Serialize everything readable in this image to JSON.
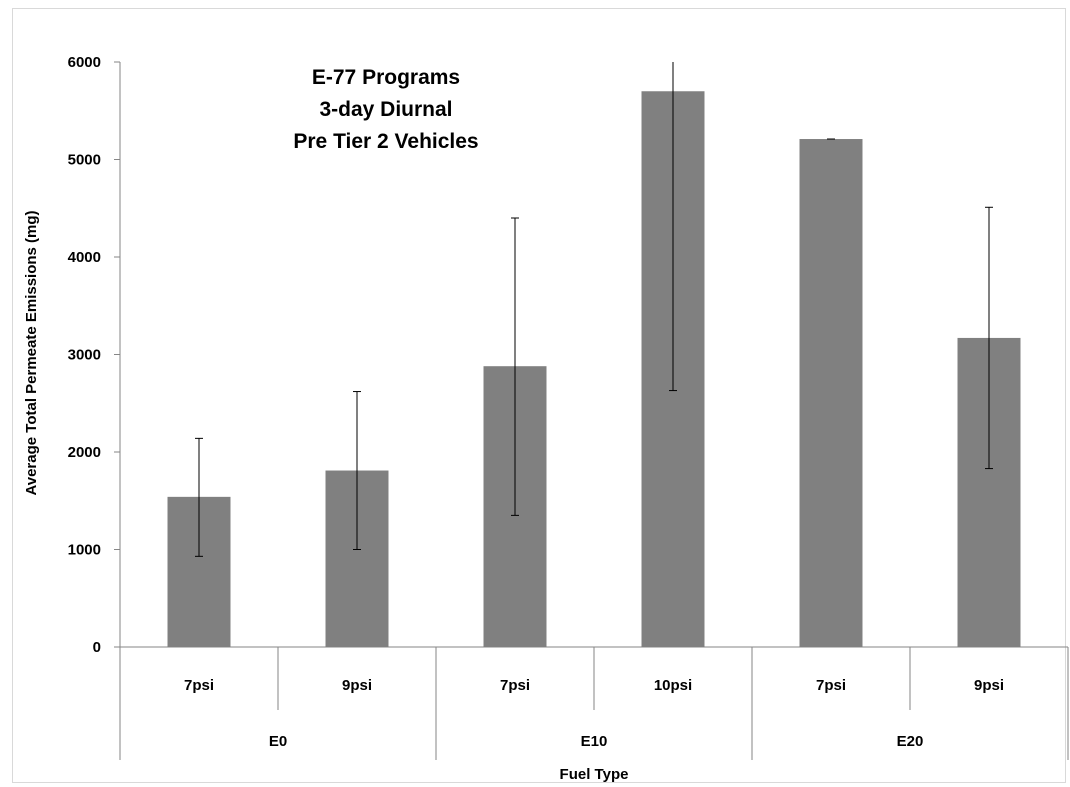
{
  "chart_data": {
    "type": "bar",
    "title_lines": [
      "E-77 Programs",
      "3-day Diurnal",
      "Pre Tier 2 Vehicles"
    ],
    "xlabel": "Fuel Type",
    "ylabel": "Average Total Permeate Emissions (mg)",
    "ylim": [
      0,
      6000
    ],
    "yticks": [
      0,
      1000,
      2000,
      3000,
      4000,
      5000,
      6000
    ],
    "grid": false,
    "legend": "none",
    "bar_color": "#808080",
    "groups": [
      {
        "label": "E0",
        "categories": [
          "7psi",
          "9psi"
        ]
      },
      {
        "label": "E10",
        "categories": [
          "7psi",
          "10psi"
        ]
      },
      {
        "label": "E20",
        "categories": [
          "7psi",
          "9psi"
        ]
      }
    ],
    "categories": [
      "7psi",
      "9psi",
      "7psi",
      "10psi",
      "7psi",
      "9psi"
    ],
    "values": [
      1540,
      1810,
      2880,
      5700,
      5210,
      3170
    ],
    "error_low": [
      930,
      1000,
      1350,
      2630,
      5210,
      1830
    ],
    "error_high": [
      2140,
      2620,
      4400,
      6000,
      5210,
      4510
    ]
  }
}
